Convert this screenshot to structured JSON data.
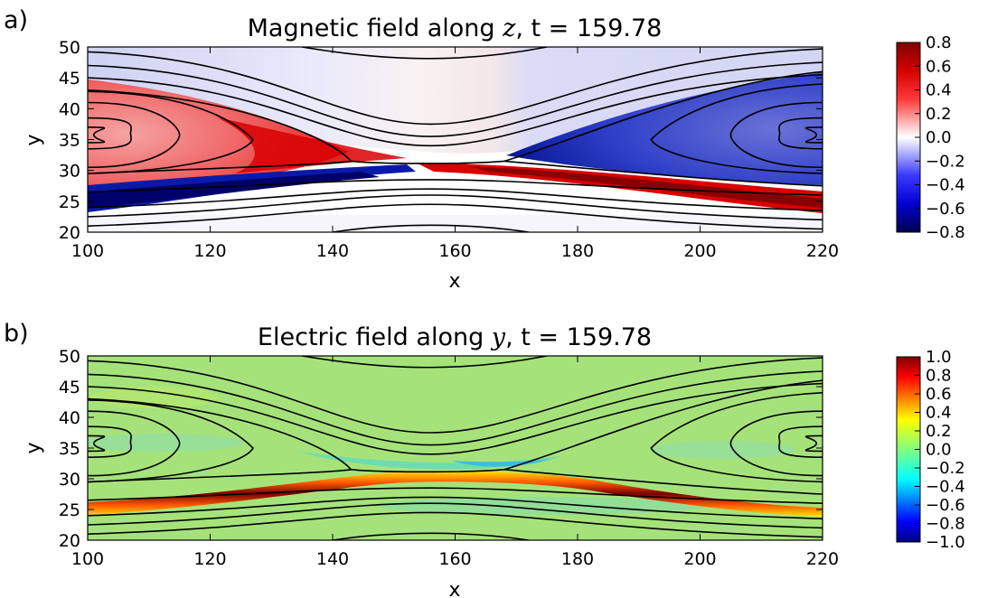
{
  "chart_data": [
    {
      "type": "heatmap",
      "panel_label": "a)",
      "title_prefix": "Magnetic field along ",
      "title_var": "z",
      "title_suffix": ", t = 159.78",
      "xlabel": "x",
      "ylabel": "y",
      "xlim": [
        100,
        220
      ],
      "ylim": [
        20,
        50
      ],
      "xticks": [
        "100",
        "120",
        "140",
        "160",
        "180",
        "200",
        "220"
      ],
      "yticks": [
        "20",
        "25",
        "30",
        "35",
        "40",
        "45",
        "50"
      ],
      "colormap": "bwr",
      "colorbar_range": [
        -0.8,
        0.8
      ],
      "colorbar_ticks": [
        "0.8",
        "0.6",
        "0.4",
        "0.2",
        "0.0",
        "−0.2",
        "−0.4",
        "−0.6",
        "−0.8"
      ],
      "field_levels": {
        "left_island_interior": 0.4,
        "left_separatrix_band": 0.6,
        "right_island_interior": -0.5,
        "right_separatrix_band": -0.8,
        "lower_left_current_sheet": -0.8,
        "lower_right_current_sheet": 0.8,
        "upper_left_lobe": -0.3,
        "upper_right_lobe": -0.2,
        "background": 0.0
      },
      "contour_lines": "magnetic field lines with X-point at x ≈ 155, y ≈ 31 and O-points at x = 100 and x = 220, y ≈ 35"
    },
    {
      "type": "heatmap",
      "panel_label": "b)",
      "title_prefix": "Electric field along ",
      "title_var": "y",
      "title_suffix": ", t = 159.78",
      "xlabel": "x",
      "ylabel": "y",
      "xlim": [
        100,
        220
      ],
      "ylim": [
        20,
        50
      ],
      "xticks": [
        "100",
        "120",
        "140",
        "160",
        "180",
        "200",
        "220"
      ],
      "yticks": [
        "20",
        "25",
        "30",
        "35",
        "40",
        "45",
        "50"
      ],
      "colormap": "jet",
      "colorbar_range": [
        -1.0,
        1.0
      ],
      "colorbar_ticks": [
        "1.0",
        "0.8",
        "0.6",
        "0.4",
        "0.2",
        "0.0",
        "−0.2",
        "−0.4",
        "−0.6",
        "−0.8",
        "−1.0"
      ],
      "field_levels": {
        "background": 0.0,
        "current_sheet_band": 1.0,
        "below_x_point": -0.3
      },
      "contour_lines": "same magnetic field lines as panel a"
    }
  ],
  "colors": {
    "bwr_low": "#00004d",
    "bwr_mid": "#ffffff",
    "bwr_high": "#800000",
    "jet_background": "#a5e37a"
  }
}
